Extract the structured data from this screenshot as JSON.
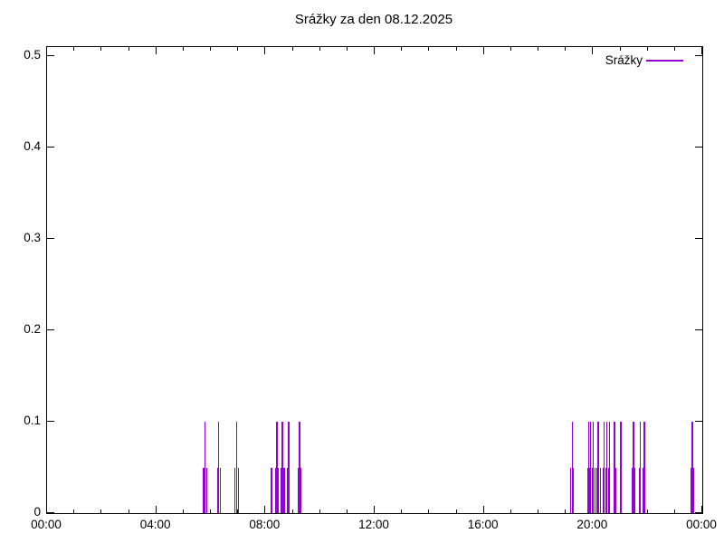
{
  "title": "Srážky za den 08.12.2025",
  "legend": {
    "label": "Srážky"
  },
  "colors": {
    "series": "#9400d3",
    "axis": "#000000",
    "background": "#ffffff"
  },
  "chart_data": {
    "type": "bar",
    "style": "impulses",
    "title": "Srážky za den 08.12.2025",
    "xlabel": "",
    "ylabel": "",
    "legend_entries": [
      "Srážky"
    ],
    "legend_position": "top-right",
    "grid": false,
    "x_axis": {
      "unit": "time",
      "range_minutes": [
        0,
        1440
      ],
      "major_tick_hours": 4,
      "minor_tick_hours": 1
    },
    "x_tick_labels": [
      "00:00",
      "04:00",
      "08:00",
      "12:00",
      "16:00",
      "20:00",
      "00:00"
    ],
    "y_tick_labels": [
      "0",
      "0.1",
      "0.2",
      "0.3",
      "0.4",
      "0.5"
    ],
    "ylim": [
      0,
      0.51
    ],
    "series": [
      {
        "name": "Srážky",
        "color": "#9400d3",
        "points": [
          {
            "t": "05:44",
            "v": 0.05
          },
          {
            "t": "05:47",
            "v": 0.1
          },
          {
            "t": "05:51",
            "v": 0.05
          },
          {
            "t": "06:15",
            "v": 0.05
          },
          {
            "t": "06:17",
            "v": 0.1
          },
          {
            "t": "06:21",
            "v": 0.05
          },
          {
            "t": "06:53",
            "v": 0.05
          },
          {
            "t": "06:56",
            "v": 0.1
          },
          {
            "t": "07:00",
            "v": 0.05
          },
          {
            "t": "08:13",
            "v": 0.05
          },
          {
            "t": "08:22",
            "v": 0.05
          },
          {
            "t": "08:25",
            "v": 0.1
          },
          {
            "t": "08:28",
            "v": 0.05
          },
          {
            "t": "08:34",
            "v": 0.05
          },
          {
            "t": "08:37",
            "v": 0.1
          },
          {
            "t": "08:41",
            "v": 0.05
          },
          {
            "t": "08:49",
            "v": 0.05
          },
          {
            "t": "08:51",
            "v": 0.1
          },
          {
            "t": "09:13",
            "v": 0.05
          },
          {
            "t": "09:15",
            "v": 0.1
          },
          {
            "t": "09:17",
            "v": 0.05
          },
          {
            "t": "19:11",
            "v": 0.05
          },
          {
            "t": "19:14",
            "v": 0.1
          },
          {
            "t": "19:17",
            "v": 0.05
          },
          {
            "t": "19:48",
            "v": 0.05
          },
          {
            "t": "19:50",
            "v": 0.1
          },
          {
            "t": "19:53",
            "v": 0.05
          },
          {
            "t": "19:55",
            "v": 0.1
          },
          {
            "t": "19:58",
            "v": 0.05
          },
          {
            "t": "20:00",
            "v": 0.1
          },
          {
            "t": "20:04",
            "v": 0.05
          },
          {
            "t": "20:09",
            "v": 0.05
          },
          {
            "t": "20:11",
            "v": 0.1
          },
          {
            "t": "20:16",
            "v": 0.05
          },
          {
            "t": "20:22",
            "v": 0.05
          },
          {
            "t": "20:24",
            "v": 0.1
          },
          {
            "t": "20:28",
            "v": 0.05
          },
          {
            "t": "20:30",
            "v": 0.1
          },
          {
            "t": "20:34",
            "v": 0.05
          },
          {
            "t": "20:36",
            "v": 0.1
          },
          {
            "t": "20:47",
            "v": 0.1
          },
          {
            "t": "20:49",
            "v": 0.05
          },
          {
            "t": "21:00",
            "v": 0.05
          },
          {
            "t": "21:01",
            "v": 0.1
          },
          {
            "t": "21:27",
            "v": 0.05
          },
          {
            "t": "21:29",
            "v": 0.1
          },
          {
            "t": "21:31",
            "v": 0.05
          },
          {
            "t": "21:42",
            "v": 0.05
          },
          {
            "t": "21:44",
            "v": 0.1
          },
          {
            "t": "21:51",
            "v": 0.05
          },
          {
            "t": "21:53",
            "v": 0.1
          },
          {
            "t": "23:35",
            "v": 0.05
          },
          {
            "t": "23:38",
            "v": 0.1
          },
          {
            "t": "23:40",
            "v": 0.05
          }
        ]
      }
    ]
  }
}
